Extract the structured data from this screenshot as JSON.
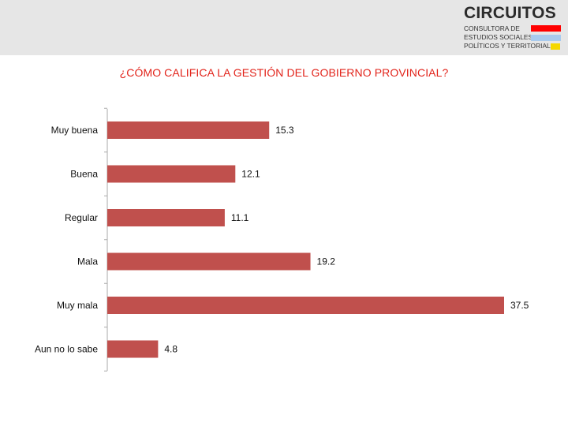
{
  "logo": {
    "name": "CIRCUITOS",
    "lines": [
      "CONSULTORA DE",
      "ESTUDIOS SOCIALES,",
      "POLÍTICOS Y TERRITORIALES"
    ],
    "colors": [
      "#ff0000",
      "#a9cbee",
      "#f5d800"
    ]
  },
  "colors": {
    "bar": "#c0504d",
    "title": "#e2231a",
    "header_band": "#e6e6e6",
    "axis": "#aaaaaa"
  },
  "chart_data": {
    "type": "bar",
    "orientation": "horizontal",
    "title": "¿CÓMO CALIFICA LA GESTIÓN DEL GOBIERNO PROVINCIAL?",
    "categories": [
      "Muy buena",
      "Buena",
      "Regular",
      "Mala",
      "Muy mala",
      "Aun no lo sabe"
    ],
    "values": [
      15.3,
      12.1,
      11.1,
      19.2,
      37.5,
      4.8
    ],
    "value_labels": [
      "15.3",
      "12.1",
      "11.1",
      "19.2",
      "37.5",
      "4.8"
    ],
    "xlim": [
      0,
      37.5
    ],
    "grid": false,
    "legend": "none"
  }
}
